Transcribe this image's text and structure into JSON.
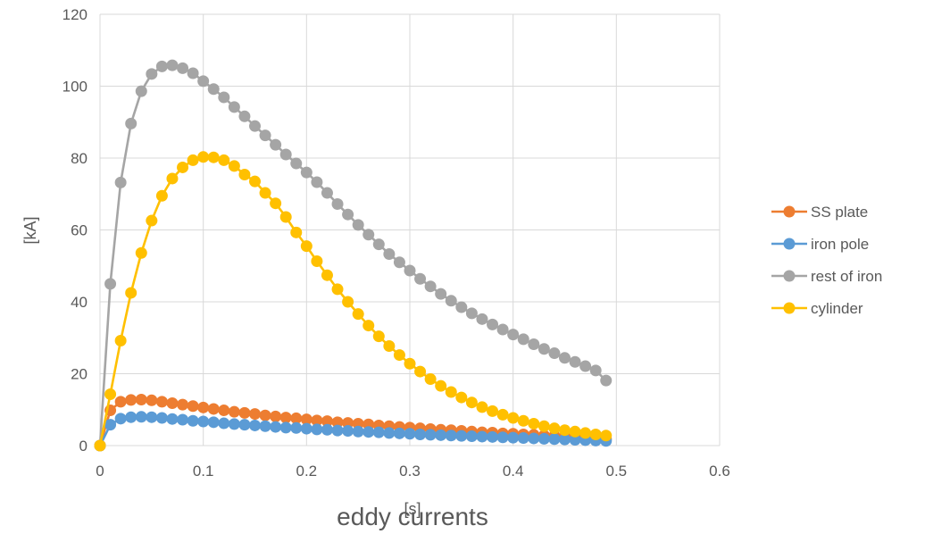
{
  "chart_data": {
    "type": "line",
    "title": "eddy currents",
    "xlabel": "[s]",
    "ylabel": "[kA]",
    "xlim": [
      0,
      0.6
    ],
    "ylim": [
      0,
      120
    ],
    "xticks": [
      "0",
      "0.1",
      "0.2",
      "0.3",
      "0.4",
      "0.5",
      "0.6"
    ],
    "yticks": [
      "0",
      "20",
      "40",
      "60",
      "80",
      "100",
      "120"
    ],
    "grid": true,
    "legend_position": "right",
    "x": [
      0,
      0.01,
      0.02,
      0.03,
      0.04,
      0.05,
      0.06,
      0.07,
      0.08,
      0.09,
      0.1,
      0.11,
      0.12,
      0.13,
      0.14,
      0.15,
      0.16,
      0.17,
      0.18,
      0.19,
      0.2,
      0.21,
      0.22,
      0.23,
      0.24,
      0.25,
      0.26,
      0.27,
      0.28,
      0.29,
      0.3,
      0.31,
      0.32,
      0.33,
      0.34,
      0.35,
      0.36,
      0.37,
      0.38,
      0.39,
      0.4,
      0.41,
      0.42,
      0.43,
      0.44,
      0.45,
      0.46,
      0.47,
      0.48,
      0.49
    ],
    "series": [
      {
        "name": "SS plate",
        "color": "#ED7D31",
        "values": [
          0,
          9.8,
          12.2,
          12.7,
          12.8,
          12.6,
          12.2,
          11.8,
          11.4,
          11,
          10.6,
          10.2,
          9.8,
          9.4,
          9.1,
          8.8,
          8.4,
          8.1,
          7.8,
          7.6,
          7.3,
          7,
          6.8,
          6.5,
          6.3,
          6.1,
          5.9,
          5.6,
          5.4,
          5.2,
          5,
          4.8,
          4.6,
          4.4,
          4.3,
          4.1,
          3.9,
          3.7,
          3.6,
          3.4,
          3.3,
          3.1,
          3,
          2.8,
          2.7,
          2.5,
          2.3,
          2.1,
          2,
          1.8
        ]
      },
      {
        "name": "iron pole",
        "color": "#5B9BD5",
        "values": [
          0,
          5.8,
          7.5,
          7.9,
          8,
          7.9,
          7.7,
          7.4,
          7.2,
          6.9,
          6.7,
          6.5,
          6.2,
          6,
          5.8,
          5.6,
          5.4,
          5.2,
          5,
          4.9,
          4.7,
          4.5,
          4.4,
          4.2,
          4.1,
          3.9,
          3.8,
          3.7,
          3.5,
          3.4,
          3.3,
          3.1,
          3,
          2.9,
          2.8,
          2.7,
          2.6,
          2.5,
          2.4,
          2.3,
          2.2,
          2.1,
          2,
          1.9,
          1.8,
          1.7,
          1.6,
          1.5,
          1.4,
          1.3
        ]
      },
      {
        "name": "rest of iron",
        "color": "#A5A5A5",
        "values": [
          0,
          45,
          73.2,
          89.6,
          98.6,
          103.4,
          105.5,
          105.8,
          105,
          103.6,
          101.4,
          99.2,
          96.9,
          94.2,
          91.6,
          88.9,
          86.3,
          83.7,
          81,
          78.5,
          76,
          73.3,
          70.3,
          67.2,
          64.3,
          61.4,
          58.7,
          56,
          53.3,
          51,
          48.7,
          46.4,
          44.3,
          42.2,
          40.3,
          38.5,
          36.8,
          35.2,
          33.7,
          32.3,
          30.9,
          29.6,
          28.2,
          26.9,
          25.7,
          24.4,
          23.3,
          22.1,
          20.9,
          18.1
        ]
      },
      {
        "name": "cylinder",
        "color": "#FFC000",
        "values": [
          0,
          14.3,
          29.2,
          42.5,
          53.6,
          62.6,
          69.5,
          74.3,
          77.4,
          79.4,
          80.3,
          80.2,
          79.4,
          77.8,
          75.4,
          73.5,
          70.3,
          67.4,
          63.6,
          59.3,
          55.5,
          51.3,
          47.4,
          43.5,
          40,
          36.6,
          33.4,
          30.4,
          27.7,
          25.2,
          22.8,
          20.6,
          18.5,
          16.6,
          14.9,
          13.4,
          12,
          10.7,
          9.6,
          8.6,
          7.7,
          6.9,
          6.1,
          5.4,
          4.8,
          4.3,
          3.9,
          3.5,
          3.1,
          2.8
        ]
      }
    ]
  }
}
